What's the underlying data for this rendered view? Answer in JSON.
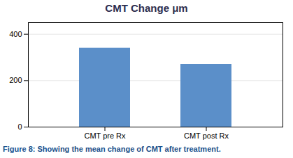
{
  "chart_data": {
    "type": "bar",
    "title": "CMT Change μm",
    "caption": "Figure 8: Showing the mean change of CMT after treatment.",
    "categories": [
      "CMT pre Rx",
      "CMT post Rx"
    ],
    "values": [
      340,
      270
    ],
    "color": "#5b8fc9",
    "ylim": [
      0,
      450
    ],
    "yticks": [
      0,
      200,
      400
    ],
    "grid": true
  }
}
